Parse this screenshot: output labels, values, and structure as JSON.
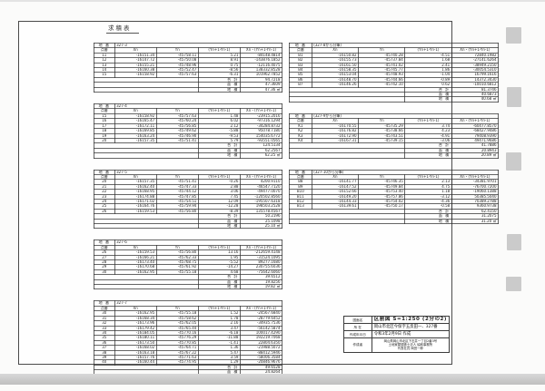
{
  "page": {
    "title": "求積表"
  },
  "colors": {
    "ink": "#222222",
    "paper": "#fefefe",
    "artifact_gray": "#cbcbcb"
  },
  "table_headers": {
    "lot_label": "地 番",
    "point": "点番",
    "x": "Xn",
    "y": "Yn",
    "dy": "(Yn+1-Yn-1)",
    "xdy": "Xn・(Yn+1-Yn-1)"
  },
  "summary_labels": {
    "total": "合 計",
    "area": "面 積",
    "parcel": "地 積"
  },
  "tables": {
    "left": [
      {
        "lot": "327-3",
        "rows": [
          [
            "11",
            "-16151.34",
            "-45758.11",
            "5.21",
            "-84148.4814"
          ],
          [
            "12",
            "-16147.72",
            "-45750.08",
            "8.91",
            "-143876.1852"
          ],
          [
            "13",
            "-16155.21",
            "-45748.96",
            "0.75",
            "-12116.4075"
          ],
          [
            "14",
            "-16160.38",
            "-45752.47",
            "-8.56",
            "138332.8528"
          ],
          [
            "15",
            "-16158.92",
            "-45757.63",
            "-6.31",
            "101962.7852"
          ]
        ],
        "summary": [
          [
            "合 計",
            "94.7218"
          ],
          [
            "面 積",
            "47.3609"
          ],
          [
            "地 積",
            "47.36 ㎡"
          ]
        ]
      },
      {
        "lot": "327-4",
        "rows": [
          [
            "15",
            "-16158.92",
            "-45757.63",
            "1.48",
            "-23915.2016"
          ],
          [
            "16",
            "-16165.47",
            "-45760.24",
            "6.02",
            "-97316.1294"
          ],
          [
            "17",
            "-16172.11",
            "-45756.85",
            "2.12",
            "-34284.8732"
          ],
          [
            "18",
            "-16169.85",
            "-45749.62",
            "-5.88",
            "95078.7180"
          ],
          [
            "19",
            "-16163.24",
            "-45746.90",
            "-9.53",
            "154035.6772"
          ],
          [
            "20",
            "-16157.35",
            "-45751.41",
            "5.79",
            "-93551.0565"
          ]
        ],
        "summary": [
          [
            "合 計",
            "124.5134"
          ],
          [
            "面 積",
            "62.2567"
          ],
          [
            "地 積",
            "62.25 ㎡"
          ]
        ]
      },
      {
        "lot": "327-5",
        "rows": [
          [
            "20",
            "-16157.35",
            "-45751.41",
            "-0.26",
            "4200.9110"
          ],
          [
            "21",
            "-16162.40",
            "-45747.33",
            "2.88",
            "-46547.7120"
          ],
          [
            "22",
            "-16168.95",
            "-45744.12",
            "3.06",
            "-49477.0070"
          ],
          [
            "23",
            "-16174.88",
            "-45747.85",
            "7.45",
            "-120502.8560"
          ],
          [
            "24",
            "-16171.02",
            "-45754.51",
            "12.09",
            "-195507.6318"
          ],
          [
            "25",
            "-16164.76",
            "-45759.94",
            "-12.28",
            "198503.2528"
          ],
          [
            "26",
            "-16159.53",
            "-45756.80",
            "-8.39",
            "135578.4567"
          ]
        ],
        "summary": [
          [
            "合 計",
            "50.2196"
          ],
          [
            "面 積",
            "25.1098"
          ],
          [
            "地 積",
            "25.10 ㎡"
          ]
        ]
      },
      {
        "lot": "327-6",
        "rows": [
          [
            "26",
            "-16159.53",
            "-45756.80",
            "13.16",
            "-212659.4148"
          ],
          [
            "27",
            "-16166.21",
            "-45762.33",
            "1.95",
            "-31524.1095"
          ],
          [
            "28",
            "-16173.40",
            "-45768.75",
            "-5.52",
            "89277.1680"
          ],
          [
            "29",
            "-16170.68",
            "-45761.92",
            "-14.27",
            "230755.6036"
          ],
          [
            "30",
            "-16162.95",
            "-45755.18",
            "4.68",
            "-75642.6060"
          ]
        ],
        "summary": [
          [
            "合 計",
            "39.6512"
          ],
          [
            "面 積",
            "19.8256"
          ],
          [
            "地 積",
            "19.82 ㎡"
          ]
        ]
      },
      {
        "lot": "327-7",
        "rows": [
          [
            "30",
            "-16162.95",
            "-45755.18",
            "1.52",
            "-24567.6840"
          ],
          [
            "31",
            "-16168.34",
            "-45758.62",
            "1.78",
            "-28779.6452"
          ],
          [
            "32",
            "-16173.96",
            "-45762.05",
            "2.16",
            "-34935.7536"
          ],
          [
            "33",
            "-16179.42",
            "-45765.44",
            "3.47",
            "-56142.5874"
          ],
          [
            "34",
            "-16184.05",
            "-45770.16",
            "-6.18",
            "100017.4290"
          ],
          [
            "35",
            "-16180.11",
            "-45776.29",
            "-11.88",
            "192219.7068"
          ],
          [
            "36",
            "-16173.50",
            "-45770.85",
            "-1.41",
            "22804.6350"
          ],
          [
            "37",
            "-16168.02",
            "-45764.71",
            "1.36",
            "-21988.5072"
          ],
          [
            "38",
            "-16163.18",
            "-45767.22",
            "5.47",
            "-88412.5946"
          ],
          [
            "39",
            "-16157.76",
            "-45771.63",
            "3.59",
            "-58006.3584"
          ],
          [
            "40",
            "-16160.44",
            "-45774.95",
            "1.29",
            "-20846.9676"
          ]
        ],
        "summary": [
          [
            "合 計",
            "49.6528"
          ],
          [
            "面 積",
            "24.8264"
          ],
          [
            "地 積",
            "24.82 ㎡"
          ]
        ]
      }
    ],
    "right": [
      {
        "lot": "(327-8から分筆)",
        "rows": [
          [
            "B1",
            "-16150.82",
            "-45740.28",
            "-4.51",
            "72840.1982"
          ],
          [
            "B2",
            "-16155.73",
            "-45737.84",
            "1.68",
            "-27141.6264"
          ],
          [
            "B3",
            "-16161.50",
            "-45741.02",
            "2.41",
            "-38949.2150"
          ],
          [
            "B4",
            "-16158.35",
            "-45745.77",
            "1.86",
            "-30054.5310"
          ],
          [
            "B5",
            "-16153.04",
            "-45748.93",
            "-1.04",
            "16799.1616"
          ],
          [
            "B6",
            "-16148.70",
            "-45744.66",
            "-0.89",
            "14372.3430"
          ],
          [
            "B7",
            "-16146.26",
            "-45742.10",
            "0.62",
            "-10010.6812"
          ]
        ],
        "summary": [
          [
            "合 計",
            "81.3746"
          ],
          [
            "面 積",
            "40.6873"
          ],
          [
            "地 積",
            "40.68 ㎡"
          ]
        ]
      },
      {
        "lot": "(327-9から分筆)",
        "rows": [
          [
            "K1",
            "-16170.55",
            "-45735.29",
            "3.74",
            "-60477.8570"
          ],
          [
            "K2",
            "-16176.82",
            "-45738.66",
            "4.23",
            "-68427.9486"
          ],
          [
            "K3",
            "-16172.90",
            "-45743.51",
            "-4.91",
            "79408.9390"
          ],
          [
            "K4",
            "-16167.31",
            "-45739.15",
            "-3.06",
            "49471.9686"
          ]
        ],
        "summary": [
          [
            "合 計",
            "41.7886"
          ],
          [
            "面 積",
            "20.8943"
          ],
          [
            "地 積",
            "20.89 ㎡"
          ]
        ]
      },
      {
        "lot": "(327-10から分筆)",
        "rows": [
          [
            "B8",
            "-16141.77",
            "-45746.35",
            "2.13",
            "-34381.9701"
          ],
          [
            "B9",
            "-16147.52",
            "-45749.84",
            "4.75",
            "-76700.7200"
          ],
          [
            "B10",
            "-16152.66",
            "-45753.40",
            "1.18",
            "-19060.1388"
          ],
          [
            "B11",
            "-16149.20",
            "-45757.86",
            "-3.12",
            "50385.5040"
          ],
          [
            "B12",
            "-16144.33",
            "-45754.02",
            "-4.36",
            "70389.2788"
          ],
          [
            "B13",
            "-16139.61",
            "-45750.17",
            "-0.58",
            "9360.9738"
          ]
        ],
        "summary": [
          [
            "合 計",
            "62.4150"
          ],
          [
            "面 積",
            "31.2075"
          ],
          [
            "地 積",
            "31.20 ㎡"
          ]
        ]
      }
    ]
  },
  "title_block": {
    "drawing_name_label": "図面名",
    "drawing_name": "区割図 S=1:250 (2分の2)",
    "location_label": "所 在",
    "location": "岡山市北区今保字五反田一、327番",
    "date_label": "作成年月日",
    "date": "令和3年2月9日 作成",
    "author_label": "作成者",
    "author_lines": [
      "岡山県岡山市北区下石井一丁目2番3号",
      "土地家屋調査士法人 協和事務所",
      "代表社員 岡田一郎"
    ]
  }
}
